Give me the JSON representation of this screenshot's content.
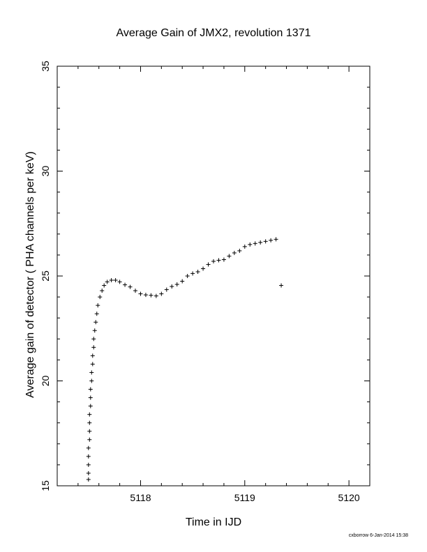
{
  "chart_data": {
    "type": "scatter",
    "title": "Average Gain of JMX2, revolution 1371",
    "xlabel": "Time in IJD",
    "ylabel": "Average gain of detector ( PHA channels per keV)",
    "xlim": [
      5117.2,
      5120.2
    ],
    "ylim": [
      15,
      35
    ],
    "xticks": [
      5118,
      5119,
      5120
    ],
    "yticks": [
      15,
      20,
      25,
      30,
      35
    ],
    "xtick_labels": [
      "5118",
      "5119",
      "5120"
    ],
    "ytick_labels": [
      "15",
      "20",
      "25",
      "30",
      "35"
    ],
    "grid": false,
    "marker": "plus",
    "series": [
      {
        "points": [
          [
            5117.5,
            15.3
          ],
          [
            5117.5,
            15.6
          ],
          [
            5117.5,
            16.0
          ],
          [
            5117.5,
            16.4
          ],
          [
            5117.5,
            16.8
          ],
          [
            5117.51,
            17.2
          ],
          [
            5117.51,
            17.6
          ],
          [
            5117.51,
            18.0
          ],
          [
            5117.51,
            18.4
          ],
          [
            5117.52,
            18.8
          ],
          [
            5117.52,
            19.2
          ],
          [
            5117.52,
            19.6
          ],
          [
            5117.53,
            20.0
          ],
          [
            5117.53,
            20.4
          ],
          [
            5117.54,
            20.8
          ],
          [
            5117.54,
            21.2
          ],
          [
            5117.55,
            21.6
          ],
          [
            5117.55,
            22.0
          ],
          [
            5117.56,
            22.4
          ],
          [
            5117.57,
            22.8
          ],
          [
            5117.58,
            23.2
          ],
          [
            5117.59,
            23.6
          ],
          [
            5117.61,
            24.0
          ],
          [
            5117.63,
            24.3
          ],
          [
            5117.65,
            24.55
          ],
          [
            5117.68,
            24.72
          ],
          [
            5117.72,
            24.8
          ],
          [
            5117.76,
            24.8
          ],
          [
            5117.8,
            24.72
          ],
          [
            5117.85,
            24.58
          ],
          [
            5117.9,
            24.48
          ],
          [
            5117.95,
            24.3
          ],
          [
            5118.0,
            24.15
          ],
          [
            5118.05,
            24.1
          ],
          [
            5118.1,
            24.08
          ],
          [
            5118.15,
            24.05
          ],
          [
            5118.2,
            24.15
          ],
          [
            5118.25,
            24.35
          ],
          [
            5118.3,
            24.5
          ],
          [
            5118.35,
            24.6
          ],
          [
            5118.4,
            24.75
          ],
          [
            5118.45,
            25.0
          ],
          [
            5118.5,
            25.12
          ],
          [
            5118.55,
            25.2
          ],
          [
            5118.6,
            25.35
          ],
          [
            5118.65,
            25.55
          ],
          [
            5118.7,
            25.7
          ],
          [
            5118.75,
            25.75
          ],
          [
            5118.8,
            25.78
          ],
          [
            5118.85,
            25.95
          ],
          [
            5118.9,
            26.1
          ],
          [
            5118.95,
            26.2
          ],
          [
            5119.0,
            26.4
          ],
          [
            5119.05,
            26.5
          ],
          [
            5119.1,
            26.55
          ],
          [
            5119.15,
            26.6
          ],
          [
            5119.2,
            26.65
          ],
          [
            5119.25,
            26.7
          ],
          [
            5119.3,
            26.75
          ],
          [
            5119.35,
            24.55
          ]
        ]
      }
    ]
  },
  "footer": "cxborrow  6-Jan-2014 15:38"
}
